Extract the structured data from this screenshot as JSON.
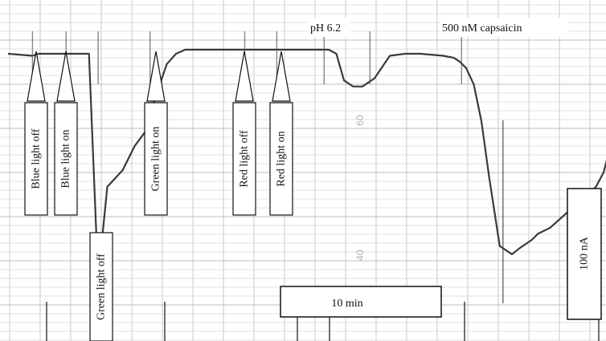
{
  "chart_data": {
    "type": "line",
    "title": "",
    "xlabel": "",
    "ylabel": "",
    "xunit": "min",
    "xlim": [
      0,
      41
    ],
    "ylim": [
      -100,
      5
    ],
    "grid": true,
    "paper_markings": [
      "60",
      "40"
    ],
    "series": [
      {
        "x": [
          0,
          1.6,
          2.0,
          2.4,
          3.4,
          3.8,
          4.2,
          4.7,
          5.3,
          5.9,
          6.5,
          7.5,
          8.3,
          9.0,
          9.7,
          10.4,
          11.0,
          11.6,
          12.5,
          14.0,
          16.0,
          18.0,
          20.0,
          21.0,
          21.5,
          22.0,
          22.6,
          23.2,
          24.0,
          25.0,
          26.0,
          27.0,
          28.5,
          29.2,
          29.6,
          30.0,
          30.5,
          31.0,
          31.5,
          32.2,
          33.0,
          33.5,
          33.9,
          34.3,
          34.7,
          35.5,
          37.0,
          38.5,
          39.0,
          39.7,
          40.5,
          41.0
        ],
        "y": [
          0,
          -1,
          0,
          0,
          0,
          0,
          0,
          0,
          0,
          -110,
          -65,
          -57,
          -45,
          -38,
          -20,
          -5,
          0,
          2,
          2,
          2,
          2,
          2,
          2,
          2,
          0,
          -13,
          -16,
          -16,
          -12,
          -1,
          0,
          0,
          -1,
          -2,
          -4,
          -7,
          -15,
          -33,
          -60,
          -94,
          -98,
          -95,
          -93,
          -91,
          -88,
          -85,
          -75,
          -65,
          -58,
          -38,
          -8,
          -5
        ]
      }
    ],
    "annotations": {
      "events": [
        {
          "label": "Blue light off",
          "x": 1.6
        },
        {
          "label": "Blue light on",
          "x": 3.8
        },
        {
          "label": "Green light off",
          "x": 5.9
        },
        {
          "label": "Green light on",
          "x": 9.3
        },
        {
          "label": "Red light off",
          "x": 15.5
        },
        {
          "label": "Red light on",
          "x": 17.6
        }
      ],
      "application_labels": [
        "pH 6.2",
        "500 nM capsaicin"
      ]
    },
    "scale_bars": {
      "time": {
        "label": "10 min",
        "value": 10,
        "unit": "min"
      },
      "current": {
        "label": "100 nA",
        "value": 100,
        "unit": "nA"
      }
    }
  }
}
